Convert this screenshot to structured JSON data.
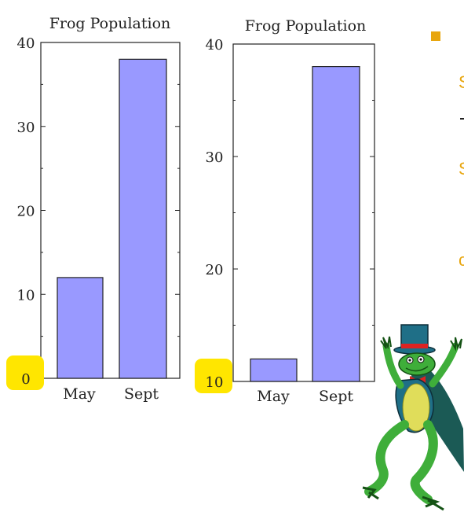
{
  "colors": {
    "bar_fill": "#9999ff",
    "highlight": "#ffe600",
    "bullet": "#e8a60f"
  },
  "chart_data": [
    {
      "type": "bar",
      "title": "Frog Population",
      "categories": [
        "May",
        "Sept"
      ],
      "values": [
        12,
        38
      ],
      "ylim": [
        0,
        40
      ],
      "ytick_labels": [
        "0",
        "10",
        "20",
        "30",
        "40"
      ],
      "highlighted_tick": "0",
      "xlabel": "",
      "ylabel": "",
      "grid": false
    },
    {
      "type": "bar",
      "title": "Frog Population",
      "categories": [
        "May",
        "Sept"
      ],
      "values": [
        12,
        38
      ],
      "ylim": [
        10,
        40
      ],
      "ytick_labels": [
        "10",
        "20",
        "30",
        "40"
      ],
      "highlighted_tick": "10",
      "xlabel": "",
      "ylabel": "",
      "grid": false
    }
  ],
  "frog_image": {
    "icon": "dancing-frog-in-top-hat-icon"
  }
}
